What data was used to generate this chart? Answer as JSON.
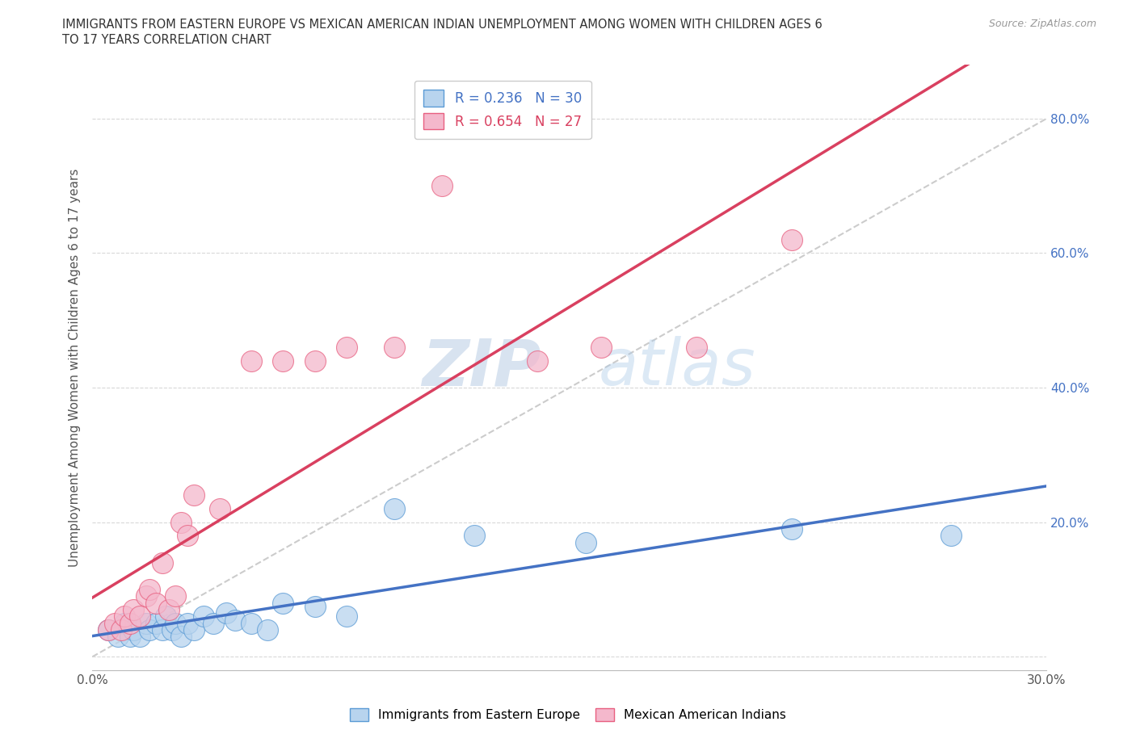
{
  "title_line1": "IMMIGRANTS FROM EASTERN EUROPE VS MEXICAN AMERICAN INDIAN UNEMPLOYMENT AMONG WOMEN WITH CHILDREN AGES 6",
  "title_line2": "TO 17 YEARS CORRELATION CHART",
  "source": "Source: ZipAtlas.com",
  "ylabel": "Unemployment Among Women with Children Ages 6 to 17 years",
  "xlim": [
    0.0,
    0.3
  ],
  "ylim": [
    -0.02,
    0.88
  ],
  "xticks": [
    0.0,
    0.05,
    0.1,
    0.15,
    0.2,
    0.25,
    0.3
  ],
  "xticklabels": [
    "0.0%",
    "",
    "",
    "",
    "",
    "",
    "30.0%"
  ],
  "yticks": [
    0.0,
    0.2,
    0.4,
    0.6,
    0.8
  ],
  "yticklabels": [
    "",
    "20.0%",
    "40.0%",
    "60.0%",
    "80.0%"
  ],
  "blue_R": "0.236",
  "blue_N": "30",
  "pink_R": "0.654",
  "pink_N": "27",
  "blue_fill_color": "#b8d4ee",
  "pink_fill_color": "#f4b8cc",
  "blue_edge_color": "#5b9bd5",
  "pink_edge_color": "#e86080",
  "blue_line_color": "#4472c4",
  "pink_line_color": "#d94060",
  "grid_color": "#d8d8d8",
  "diagonal_color": "#cccccc",
  "blue_scatter_x": [
    0.005,
    0.008,
    0.01,
    0.012,
    0.013,
    0.015,
    0.017,
    0.018,
    0.02,
    0.022,
    0.023,
    0.025,
    0.026,
    0.028,
    0.03,
    0.032,
    0.035,
    0.038,
    0.042,
    0.045,
    0.05,
    0.055,
    0.06,
    0.07,
    0.08,
    0.095,
    0.12,
    0.155,
    0.22,
    0.27
  ],
  "blue_scatter_y": [
    0.04,
    0.03,
    0.05,
    0.03,
    0.04,
    0.03,
    0.05,
    0.04,
    0.05,
    0.04,
    0.06,
    0.04,
    0.05,
    0.03,
    0.05,
    0.04,
    0.06,
    0.05,
    0.065,
    0.055,
    0.05,
    0.04,
    0.08,
    0.075,
    0.06,
    0.22,
    0.18,
    0.17,
    0.19,
    0.18
  ],
  "pink_scatter_x": [
    0.005,
    0.007,
    0.009,
    0.01,
    0.012,
    0.013,
    0.015,
    0.017,
    0.018,
    0.02,
    0.022,
    0.024,
    0.026,
    0.028,
    0.03,
    0.032,
    0.04,
    0.05,
    0.06,
    0.07,
    0.08,
    0.095,
    0.11,
    0.14,
    0.16,
    0.19,
    0.22
  ],
  "pink_scatter_y": [
    0.04,
    0.05,
    0.04,
    0.06,
    0.05,
    0.07,
    0.06,
    0.09,
    0.1,
    0.08,
    0.14,
    0.07,
    0.09,
    0.2,
    0.18,
    0.24,
    0.22,
    0.44,
    0.44,
    0.44,
    0.46,
    0.46,
    0.7,
    0.44,
    0.46,
    0.46,
    0.62
  ],
  "watermark_zip": "ZIP",
  "watermark_atlas": "atlas",
  "background_color": "#ffffff"
}
